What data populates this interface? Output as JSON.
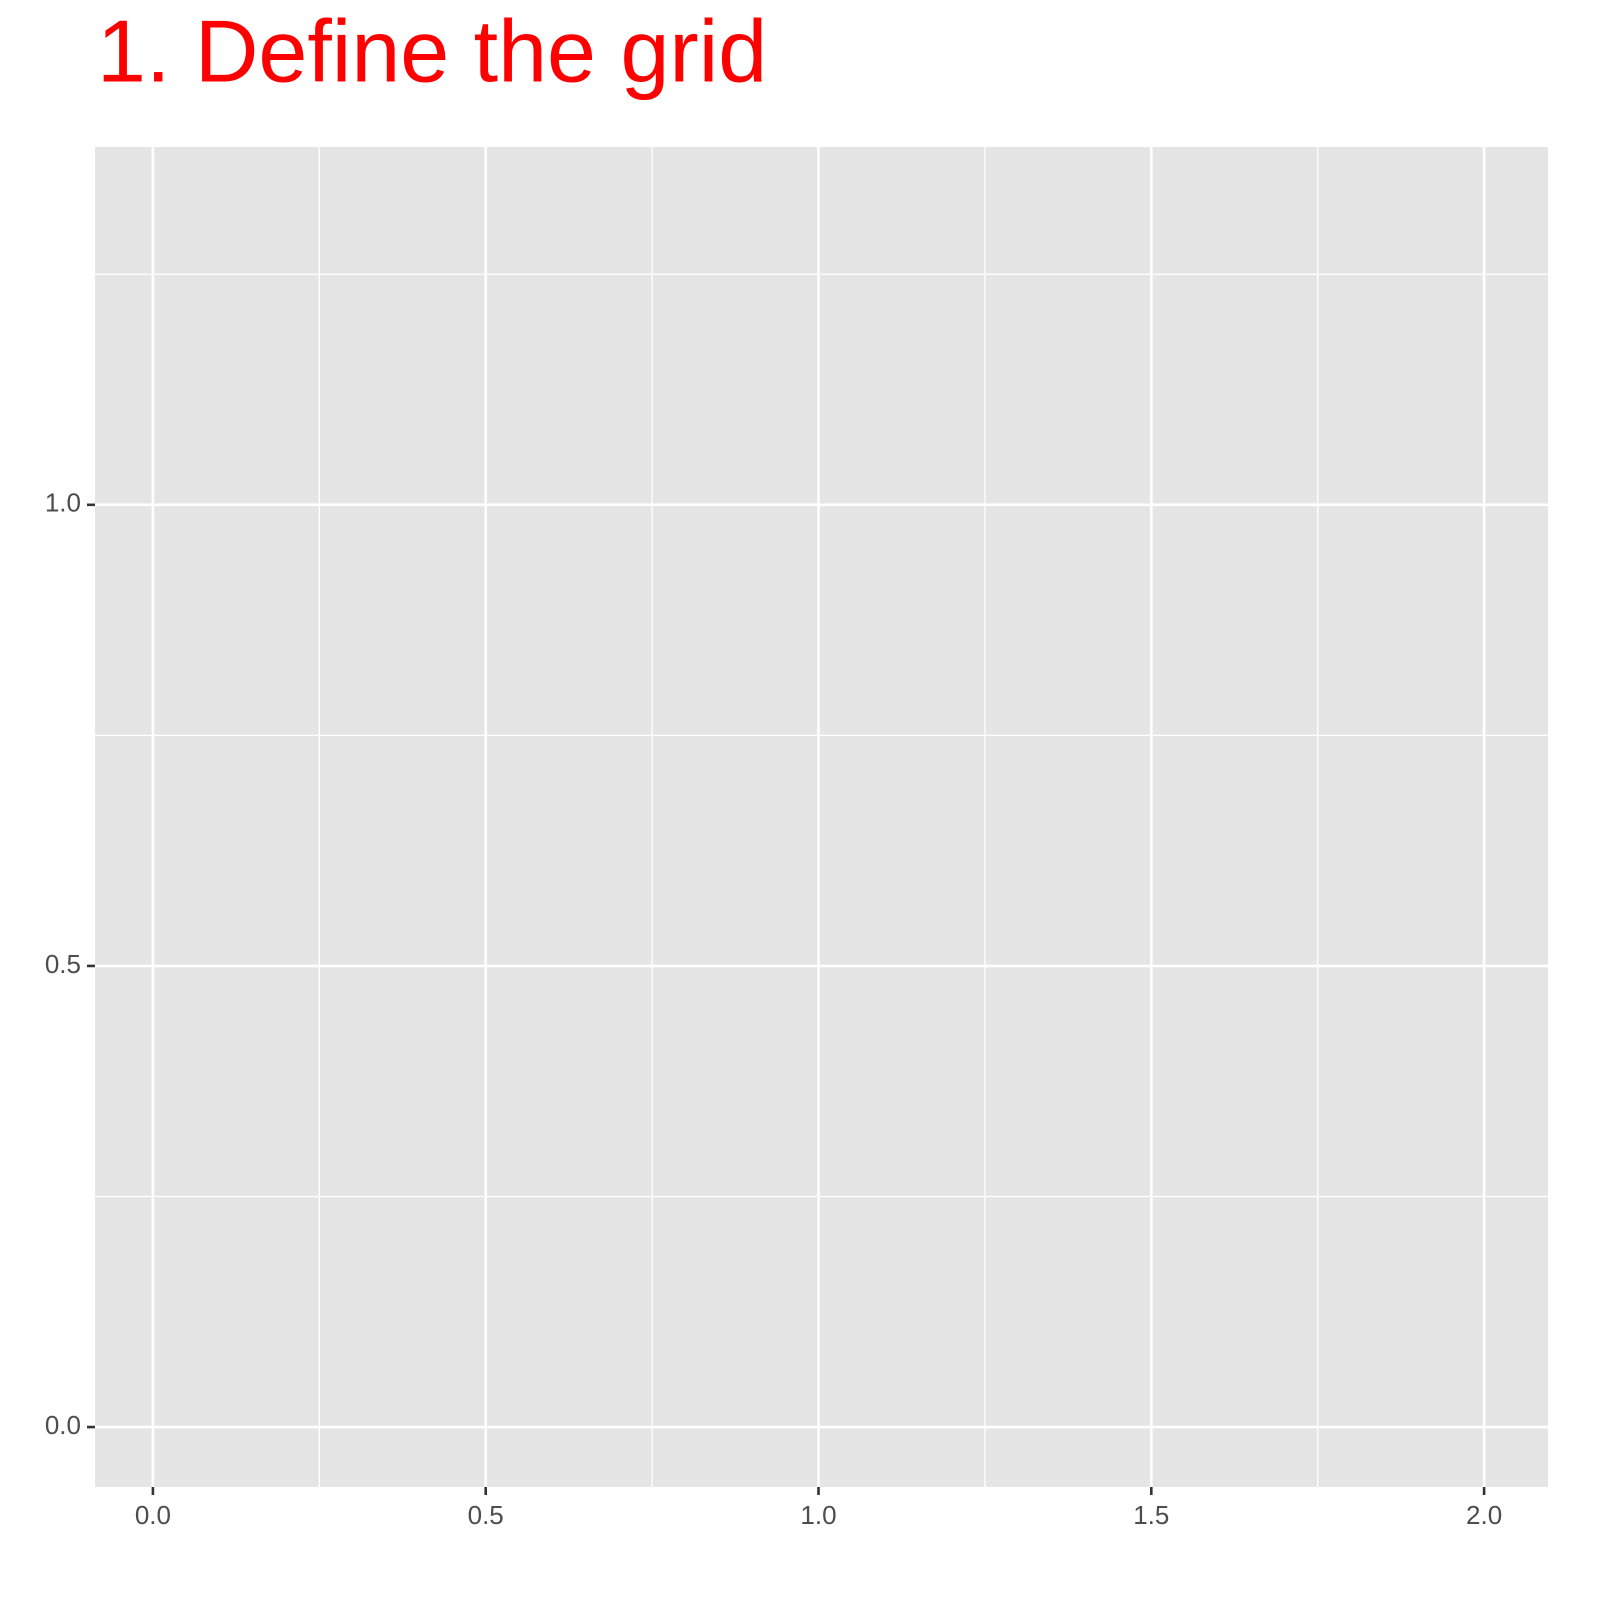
{
  "chart_data": {
    "type": "scatter",
    "title": "1. Define the grid",
    "title_color": "#ff0000",
    "xlim": [
      -0.087,
      2.096
    ],
    "ylim": [
      -0.065,
      1.388
    ],
    "xticks": [
      {
        "value": 0,
        "label": "0.0"
      },
      0.5,
      {
        "value": 1,
        "label": "1.0"
      },
      1.5,
      {
        "value": 2,
        "label": "2.0"
      }
    ],
    "yticks": [
      {
        "value": 0,
        "label": "0.0"
      },
      0.5,
      {
        "value": 1,
        "label": "1.0"
      }
    ],
    "x_minor_grid": [
      0.25,
      0.75,
      1.25,
      1.75
    ],
    "y_minor_grid": [
      0.25,
      0.75,
      1.25
    ],
    "grid": true,
    "panel_color": "#e5e5e5"
  }
}
